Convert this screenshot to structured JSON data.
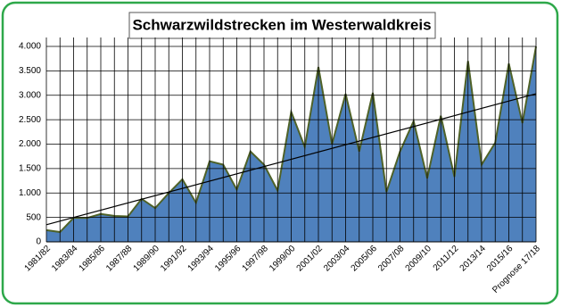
{
  "chart_data": {
    "type": "area",
    "title": "Schwarzwildstrecken im Westerwaldkreis",
    "categories": [
      "1981/82",
      null,
      "1983/84",
      null,
      "1985/86",
      null,
      "1987/88",
      null,
      "1989/90",
      null,
      "1991/92",
      null,
      "1993/94",
      null,
      "1995/96",
      null,
      "1997/98",
      null,
      "1999/00",
      null,
      "2001/02",
      null,
      "2003/04",
      null,
      "2005/06",
      null,
      "2007/08",
      null,
      "2009/10",
      null,
      "2011/12",
      null,
      "2013/14",
      null,
      "2015/16",
      null,
      "Prognose 17/18"
    ],
    "values": [
      240,
      200,
      490,
      490,
      570,
      530,
      520,
      880,
      690,
      1000,
      1280,
      800,
      1650,
      1580,
      1070,
      1850,
      1580,
      1050,
      2660,
      1940,
      3580,
      2000,
      3030,
      1850,
      3050,
      1020,
      1850,
      2470,
      1300,
      2580,
      1330,
      3700,
      1580,
      2030,
      3650,
      2430,
      4000
    ],
    "color": "#4f81bd",
    "line_color": "#4f6228",
    "trend": [
      350,
      3030
    ],
    "ylim": [
      0,
      4000
    ],
    "yticks": [
      0,
      500,
      {
        "value": 1000,
        "label": "1.000"
      },
      {
        "value": 1500,
        "label": "1.500"
      },
      {
        "value": 2000,
        "label": "2.000"
      },
      {
        "value": 2500,
        "label": "2.500"
      },
      {
        "value": 3000,
        "label": "3.000"
      },
      {
        "value": 3500,
        "label": "3.500"
      },
      {
        "value": 4000,
        "label": "4.000"
      }
    ],
    "grid": true
  }
}
